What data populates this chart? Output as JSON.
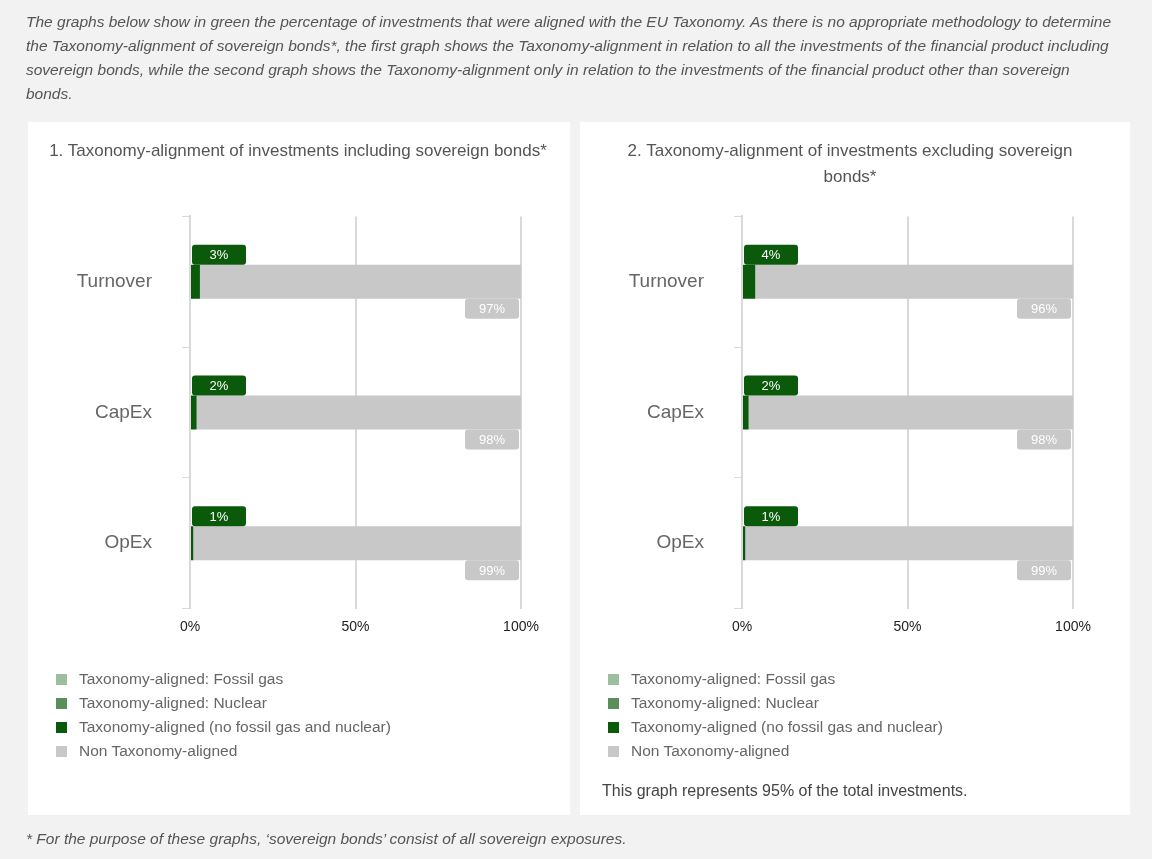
{
  "chart_data": [
    {
      "type": "bar",
      "title": "1. Taxonomy-alignment of investments including sovereign bonds*",
      "orientation": "horizontal",
      "stacked": true,
      "categories": [
        "Turnover",
        "CapEx",
        "OpEx"
      ],
      "series": [
        {
          "name": "Taxonomy-aligned: Fossil gas",
          "color": "#9dbf9d",
          "values": [
            0,
            0,
            0
          ]
        },
        {
          "name": "Taxonomy-aligned: Nuclear",
          "color": "#5a8f5a",
          "values": [
            0,
            0,
            0
          ]
        },
        {
          "name": "Taxonomy-aligned (no fossil gas and nuclear)",
          "color": "#0b5a0b",
          "values": [
            3,
            2,
            1
          ],
          "value_labels": [
            "3%",
            "2%",
            "1%"
          ]
        },
        {
          "name": "Non Taxonomy-aligned",
          "color": "#c8c8c8",
          "values": [
            97,
            98,
            99
          ],
          "value_labels": [
            "97%",
            "98%",
            "99%"
          ]
        }
      ],
      "xlim": [
        0,
        100
      ],
      "xticks": [
        {
          "value": 0,
          "label": "0%"
        },
        {
          "value": 50,
          "label": "50%"
        },
        {
          "value": 100,
          "label": "100%"
        }
      ],
      "grid": "x",
      "legend": "bottom",
      "annotations": [
        "The graphs below show in green the percentage of investments that were aligned with the EU Taxonomy. As there is no appropriate methodology to determine the Taxonomy-alignment of sovereign bonds*, the first graph shows the Taxonomy-alignment in relation to all the investments of the financial product including sovereign bonds, while the second graph shows the Taxonomy-alignment only in relation to the investments of the financial product other than sovereign bonds."
      ]
    },
    {
      "type": "bar",
      "title": "2. Taxonomy-alignment of investments excluding sovereign bonds*",
      "orientation": "horizontal",
      "stacked": true,
      "categories": [
        "Turnover",
        "CapEx",
        "OpEx"
      ],
      "series": [
        {
          "name": "Taxonomy-aligned: Fossil gas",
          "color": "#9dbf9d",
          "values": [
            0,
            0,
            0
          ]
        },
        {
          "name": "Taxonomy-aligned: Nuclear",
          "color": "#5a8f5a",
          "values": [
            0,
            0,
            0
          ]
        },
        {
          "name": "Taxonomy-aligned (no fossil gas and nuclear)",
          "color": "#0b5a0b",
          "values": [
            4,
            2,
            1
          ],
          "value_labels": [
            "4%",
            "2%",
            "1%"
          ]
        },
        {
          "name": "Non Taxonomy-aligned",
          "color": "#c8c8c8",
          "values": [
            96,
            98,
            99
          ],
          "value_labels": [
            "96%",
            "98%",
            "99%"
          ]
        }
      ],
      "xlim": [
        0,
        100
      ],
      "xticks": [
        {
          "value": 0,
          "label": "0%"
        },
        {
          "value": 50,
          "label": "50%"
        },
        {
          "value": 100,
          "label": "100%"
        }
      ],
      "grid": "x",
      "legend": "bottom",
      "annotations": [
        "This graph represents 95% of the total investments.",
        "* For the purpose of these graphs, ‘sovereign bonds’ consist of all sovereign exposures."
      ]
    }
  ]
}
